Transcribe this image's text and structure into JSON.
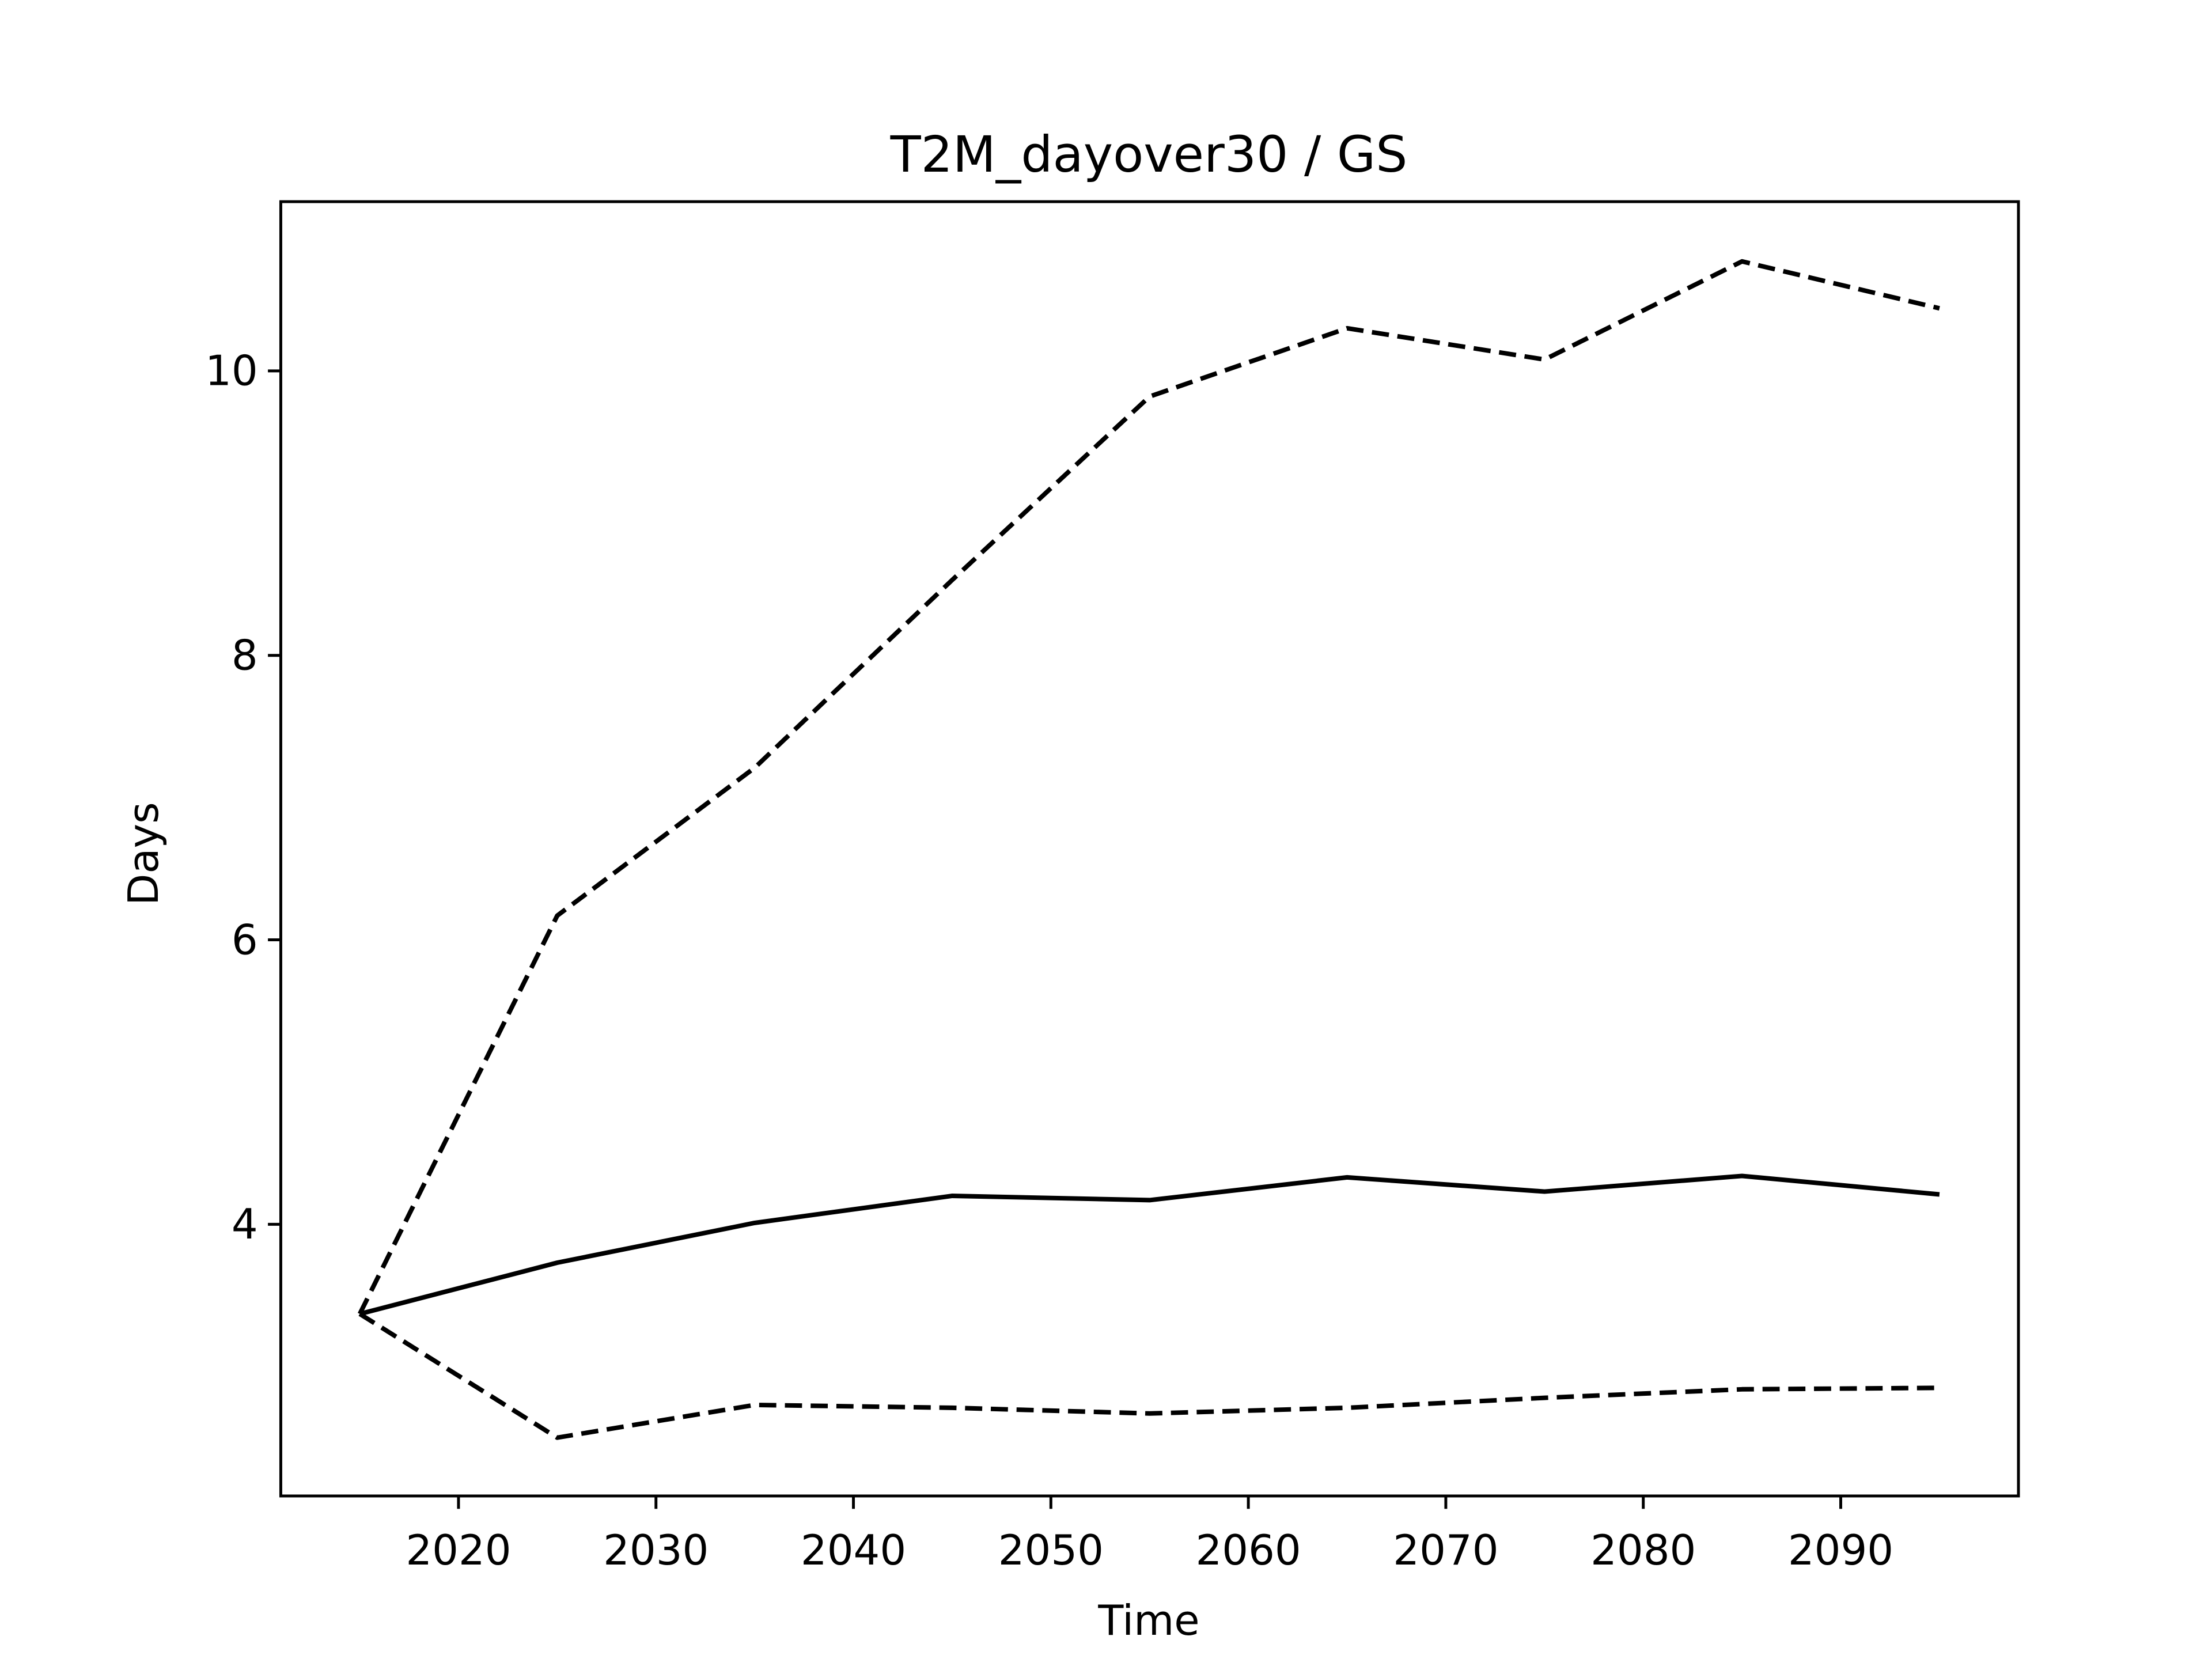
{
  "chart_data": {
    "type": "line",
    "title": "T2M_dayover30 / GS",
    "xlabel": "Time",
    "ylabel": "Days",
    "x": [
      2015,
      2025,
      2035,
      2045,
      2055,
      2065,
      2075,
      2085,
      2095
    ],
    "series": [
      {
        "color": "#000000",
        "linestyle": "solid",
        "values": [
          3.37,
          3.73,
          4.01,
          4.2,
          4.17,
          4.33,
          4.23,
          4.34,
          4.21
        ]
      },
      {
        "color": "#000000",
        "linestyle": "dashed",
        "values": [
          3.37,
          6.17,
          7.21,
          8.53,
          9.82,
          10.3,
          10.08,
          10.77,
          10.44
        ]
      },
      {
        "color": "#000000",
        "linestyle": "dashed",
        "values": [
          3.37,
          2.5,
          2.73,
          2.71,
          2.67,
          2.71,
          2.78,
          2.84,
          2.85
        ]
      }
    ],
    "xlim": [
      2011,
      2099
    ],
    "ylim": [
      2.09,
      11.19
    ],
    "xticks": [
      2020,
      2030,
      2040,
      2050,
      2060,
      2070,
      2080,
      2090
    ],
    "yticks": [
      4,
      6,
      8,
      10
    ],
    "grid": false
  }
}
